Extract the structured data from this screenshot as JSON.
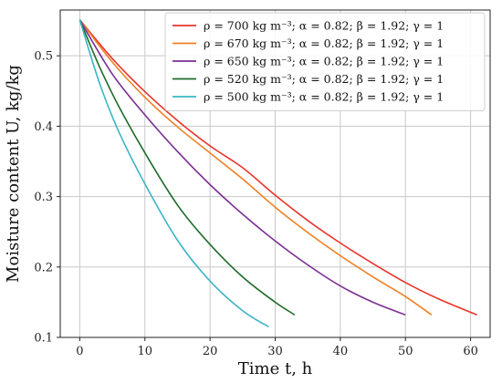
{
  "chart_data": {
    "type": "line",
    "xlabel": "Time t, h",
    "ylabel": "Moisture content U, kg/kg",
    "xlim": [
      -3,
      63
    ],
    "ylim": [
      0.1,
      0.565
    ],
    "xticks": [
      0,
      10,
      20,
      30,
      40,
      50,
      60
    ],
    "yticks": [
      0.1,
      0.2,
      0.3,
      0.4,
      0.5
    ],
    "grid": true,
    "legend_position": "top-right",
    "series": [
      {
        "name": "ρ = 700 kg m⁻³;  α = 0.82;  β = 1.92;  γ = 1",
        "color": "#e8342a",
        "x": [
          0,
          5,
          10,
          15,
          20,
          25,
          30,
          35,
          40,
          45,
          50,
          55,
          61
        ],
        "y": [
          0.551,
          0.496,
          0.449,
          0.408,
          0.372,
          0.341,
          0.302,
          0.266,
          0.234,
          0.205,
          0.178,
          0.155,
          0.132
        ]
      },
      {
        "name": "ρ = 670 kg m⁻³;  α = 0.82;  β = 1.92;  γ = 1",
        "color": "#f07f23",
        "x": [
          0,
          5,
          10,
          15,
          20,
          25,
          30,
          35,
          40,
          45,
          50,
          54
        ],
        "y": [
          0.551,
          0.491,
          0.441,
          0.399,
          0.362,
          0.325,
          0.285,
          0.249,
          0.216,
          0.186,
          0.158,
          0.132
        ]
      },
      {
        "name": "ρ = 650 kg m⁻³;  α = 0.82;  β = 1.92;  γ = 1",
        "color": "#7b2f93",
        "x": [
          0,
          5,
          10,
          15,
          20,
          25,
          30,
          35,
          40,
          45,
          50
        ],
        "y": [
          0.551,
          0.474,
          0.416,
          0.364,
          0.317,
          0.275,
          0.237,
          0.203,
          0.173,
          0.15,
          0.132
        ]
      },
      {
        "name": "ρ = 520 kg m⁻³;  α = 0.82;  β = 1.92;  γ = 1",
        "color": "#1e6b2a",
        "x": [
          0,
          3,
          6,
          10,
          15,
          20,
          25,
          30,
          33
        ],
        "y": [
          0.551,
          0.485,
          0.428,
          0.362,
          0.288,
          0.232,
          0.186,
          0.15,
          0.132
        ]
      },
      {
        "name": "ρ = 500 kg m⁻³;  α = 0.82;  β = 1.92;  γ = 1",
        "color": "#3bb5c6",
        "x": [
          0,
          3,
          6,
          10,
          15,
          20,
          25,
          29
        ],
        "y": [
          0.551,
          0.462,
          0.392,
          0.318,
          0.238,
          0.18,
          0.138,
          0.115
        ]
      }
    ]
  }
}
